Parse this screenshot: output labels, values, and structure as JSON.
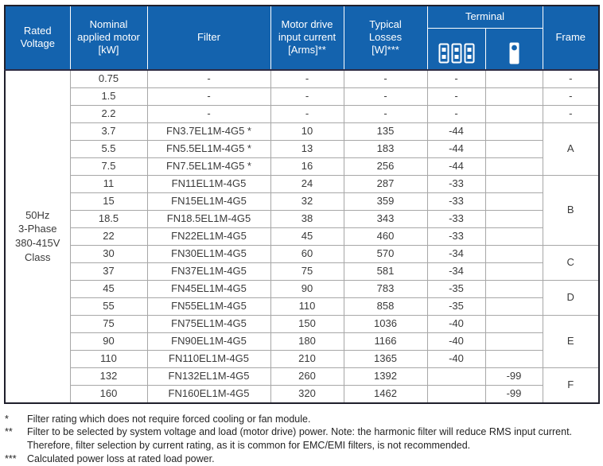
{
  "table": {
    "headers": {
      "rated_voltage": "Rated\nVoltage",
      "nominal_motor": "Nominal\napplied motor\n[kW]",
      "filter": "Filter",
      "input_current": "Motor drive\ninput current\n[Arms]**",
      "typical_losses": "Typical\nLosses\n[W]***",
      "terminal": "Terminal",
      "terminal_icons": [
        "terminal-block-icon",
        "terminal-stud-icon"
      ],
      "frame": "Frame"
    },
    "rated_voltage_cell": "50Hz\n3-Phase\n380-415V\nClass",
    "rows": [
      {
        "kw": "0.75",
        "filter": "-",
        "current": "-",
        "losses": "-",
        "terminal_block": "-",
        "terminal_stud": "",
        "frame": {
          "label": "-",
          "span": 1
        }
      },
      {
        "kw": "1.5",
        "filter": "-",
        "current": "-",
        "losses": "-",
        "terminal_block": "-",
        "terminal_stud": "",
        "frame": {
          "label": "-",
          "span": 1
        }
      },
      {
        "kw": "2.2",
        "filter": "-",
        "current": "-",
        "losses": "-",
        "terminal_block": "-",
        "terminal_stud": "",
        "frame": {
          "label": "-",
          "span": 1
        }
      },
      {
        "kw": "3.7",
        "filter": "FN3.7EL1M-4G5 *",
        "current": "10",
        "losses": "135",
        "terminal_block": "-44",
        "terminal_stud": "",
        "frame": {
          "label": "A",
          "span": 3
        }
      },
      {
        "kw": "5.5",
        "filter": "FN5.5EL1M-4G5 *",
        "current": "13",
        "losses": "183",
        "terminal_block": "-44",
        "terminal_stud": "",
        "frame": null
      },
      {
        "kw": "7.5",
        "filter": "FN7.5EL1M-4G5 *",
        "current": "16",
        "losses": "256",
        "terminal_block": "-44",
        "terminal_stud": "",
        "frame": null
      },
      {
        "kw": "11",
        "filter": "FN11EL1M-4G5",
        "current": "24",
        "losses": "287",
        "terminal_block": "-33",
        "terminal_stud": "",
        "frame": {
          "label": "B",
          "span": 4
        }
      },
      {
        "kw": "15",
        "filter": "FN15EL1M-4G5",
        "current": "32",
        "losses": "359",
        "terminal_block": "-33",
        "terminal_stud": "",
        "frame": null
      },
      {
        "kw": "18.5",
        "filter": "FN18.5EL1M-4G5",
        "current": "38",
        "losses": "343",
        "terminal_block": "-33",
        "terminal_stud": "",
        "frame": null
      },
      {
        "kw": "22",
        "filter": "FN22EL1M-4G5",
        "current": "45",
        "losses": "460",
        "terminal_block": "-33",
        "terminal_stud": "",
        "frame": null
      },
      {
        "kw": "30",
        "filter": "FN30EL1M-4G5",
        "current": "60",
        "losses": "570",
        "terminal_block": "-34",
        "terminal_stud": "",
        "frame": {
          "label": "C",
          "span": 2
        }
      },
      {
        "kw": "37",
        "filter": "FN37EL1M-4G5",
        "current": "75",
        "losses": "581",
        "terminal_block": "-34",
        "terminal_stud": "",
        "frame": null
      },
      {
        "kw": "45",
        "filter": "FN45EL1M-4G5",
        "current": "90",
        "losses": "783",
        "terminal_block": "-35",
        "terminal_stud": "",
        "frame": {
          "label": "D",
          "span": 2
        }
      },
      {
        "kw": "55",
        "filter": "FN55EL1M-4G5",
        "current": "110",
        "losses": "858",
        "terminal_block": "-35",
        "terminal_stud": "",
        "frame": null
      },
      {
        "kw": "75",
        "filter": "FN75EL1M-4G5",
        "current": "150",
        "losses": "1036",
        "terminal_block": "-40",
        "terminal_stud": "",
        "frame": {
          "label": "E",
          "span": 3
        }
      },
      {
        "kw": "90",
        "filter": "FN90EL1M-4G5",
        "current": "180",
        "losses": "1166",
        "terminal_block": "-40",
        "terminal_stud": "",
        "frame": null
      },
      {
        "kw": "110",
        "filter": "FN110EL1M-4G5",
        "current": "210",
        "losses": "1365",
        "terminal_block": "-40",
        "terminal_stud": "",
        "frame": null
      },
      {
        "kw": "132",
        "filter": "FN132EL1M-4G5",
        "current": "260",
        "losses": "1392",
        "terminal_block": "",
        "terminal_stud": "-99",
        "frame": {
          "label": "F",
          "span": 2
        }
      },
      {
        "kw": "160",
        "filter": "FN160EL1M-4G5",
        "current": "320",
        "losses": "1462",
        "terminal_block": "",
        "terminal_stud": "-99",
        "frame": null
      }
    ]
  },
  "footnotes": [
    {
      "marker": "*",
      "text": "Filter rating which does not require forced cooling or fan module."
    },
    {
      "marker": "**",
      "text": "Filter to be selected by system voltage and load (motor drive) power. Note: the harmonic filter will reduce RMS input current. Therefore, filter selection by current rating, as it is common for EMC/EMI filters, is not recommended."
    },
    {
      "marker": "***",
      "text": "Calculated power loss at rated load power."
    }
  ],
  "colors": {
    "header_blue": "#1463ae",
    "grid_gray": "#a7a7a7",
    "outer_border": "#1f1f2b",
    "body_text": "#3a3a3a"
  }
}
